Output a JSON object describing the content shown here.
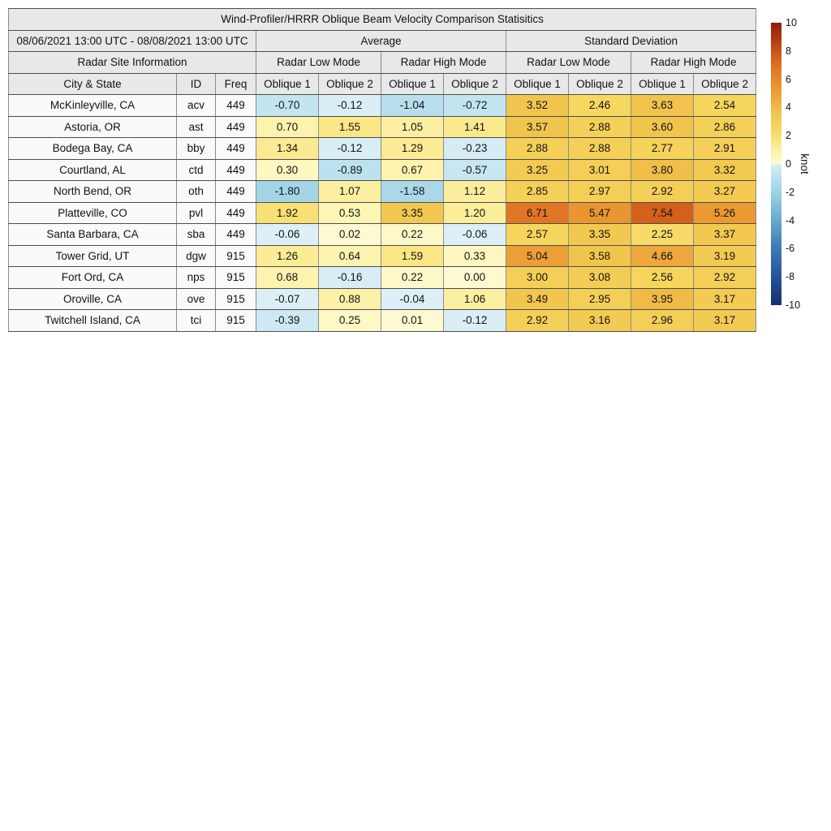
{
  "chart_data": {
    "type": "heatmap",
    "title": "Wind-Profiler/HRRR Oblique Beam Velocity Comparison Statisitics",
    "date_range": "08/06/2021 13:00 UTC - 08/08/2021 13:00 UTC",
    "site_info_header": "Radar Site Information",
    "group_headers": [
      "Average",
      "Standard Deviation"
    ],
    "mode_headers": [
      "Radar Low Mode",
      "Radar High Mode",
      "Radar Low Mode",
      "Radar High Mode"
    ],
    "columns": [
      "City & State",
      "ID",
      "Freq",
      "Oblique 1",
      "Oblique 2",
      "Oblique 1",
      "Oblique 2",
      "Oblique 1",
      "Oblique 2",
      "Oblique 1",
      "Oblique 2"
    ],
    "rows": [
      {
        "city": "McKinleyville, CA",
        "id": "acv",
        "freq": "449",
        "values": [
          -0.7,
          -0.12,
          -1.04,
          -0.72,
          3.52,
          2.46,
          3.63,
          2.54
        ]
      },
      {
        "city": "Astoria, OR",
        "id": "ast",
        "freq": "449",
        "values": [
          0.7,
          1.55,
          1.05,
          1.41,
          3.57,
          2.88,
          3.6,
          2.86
        ]
      },
      {
        "city": "Bodega Bay, CA",
        "id": "bby",
        "freq": "449",
        "values": [
          1.34,
          -0.12,
          1.29,
          -0.23,
          2.88,
          2.88,
          2.77,
          2.91
        ]
      },
      {
        "city": "Courtland, AL",
        "id": "ctd",
        "freq": "449",
        "values": [
          0.3,
          -0.89,
          0.67,
          -0.57,
          3.25,
          3.01,
          3.8,
          3.32
        ]
      },
      {
        "city": "North Bend, OR",
        "id": "oth",
        "freq": "449",
        "values": [
          -1.8,
          1.07,
          -1.58,
          1.12,
          2.85,
          2.97,
          2.92,
          3.27
        ]
      },
      {
        "city": "Platteville, CO",
        "id": "pvl",
        "freq": "449",
        "values": [
          1.92,
          0.53,
          3.35,
          1.2,
          6.71,
          5.47,
          7.54,
          5.26
        ]
      },
      {
        "city": "Santa Barbara, CA",
        "id": "sba",
        "freq": "449",
        "values": [
          -0.06,
          0.02,
          0.22,
          -0.06,
          2.57,
          3.35,
          2.25,
          3.37
        ]
      },
      {
        "city": "Tower Grid, UT",
        "id": "dgw",
        "freq": "915",
        "values": [
          1.26,
          0.64,
          1.59,
          0.33,
          5.04,
          3.58,
          4.66,
          3.19
        ]
      },
      {
        "city": "Fort Ord, CA",
        "id": "nps",
        "freq": "915",
        "values": [
          0.68,
          -0.16,
          0.22,
          0.0,
          3.0,
          3.08,
          2.56,
          2.92
        ]
      },
      {
        "city": "Oroville, CA",
        "id": "ove",
        "freq": "915",
        "values": [
          -0.07,
          0.88,
          -0.04,
          1.06,
          3.49,
          2.95,
          3.95,
          3.17
        ]
      },
      {
        "city": "Twitchell Island, CA",
        "id": "tci",
        "freq": "915",
        "values": [
          -0.39,
          0.25,
          0.01,
          -0.12,
          2.92,
          3.16,
          2.96,
          3.17
        ]
      }
    ],
    "colorbar": {
      "label": "knot",
      "min": -10,
      "max": 10,
      "ticks": [
        10,
        8,
        6,
        4,
        2,
        0,
        -2,
        -4,
        -6,
        -8,
        -10
      ],
      "colormap_anchors": [
        [
          -10,
          "#16306e"
        ],
        [
          -8,
          "#255399"
        ],
        [
          -6,
          "#3c7ab5"
        ],
        [
          -4,
          "#68a8cf"
        ],
        [
          -2,
          "#9fd2e5"
        ],
        [
          -1,
          "#b9e0ee"
        ],
        [
          -0.4,
          "#cde9f3"
        ],
        [
          -0.05,
          "#ddeff7"
        ],
        [
          0.05,
          "#fdfad2"
        ],
        [
          0.5,
          "#fdf5b4"
        ],
        [
          1,
          "#fdf0a4"
        ],
        [
          1.7,
          "#fae47e"
        ],
        [
          2.5,
          "#f6d65e"
        ],
        [
          3.6,
          "#f1c44c"
        ],
        [
          4.5,
          "#eeab3e"
        ],
        [
          5.5,
          "#ea9530"
        ],
        [
          6.8,
          "#e07425"
        ],
        [
          7.6,
          "#d25f1a"
        ],
        [
          8.5,
          "#bc4314"
        ],
        [
          10,
          "#8f1b10"
        ]
      ]
    },
    "layout": {
      "header_bg": "#e8e8e8",
      "info_cell_bg": "#fafafa",
      "grid_line": "#4d4d4d"
    }
  }
}
